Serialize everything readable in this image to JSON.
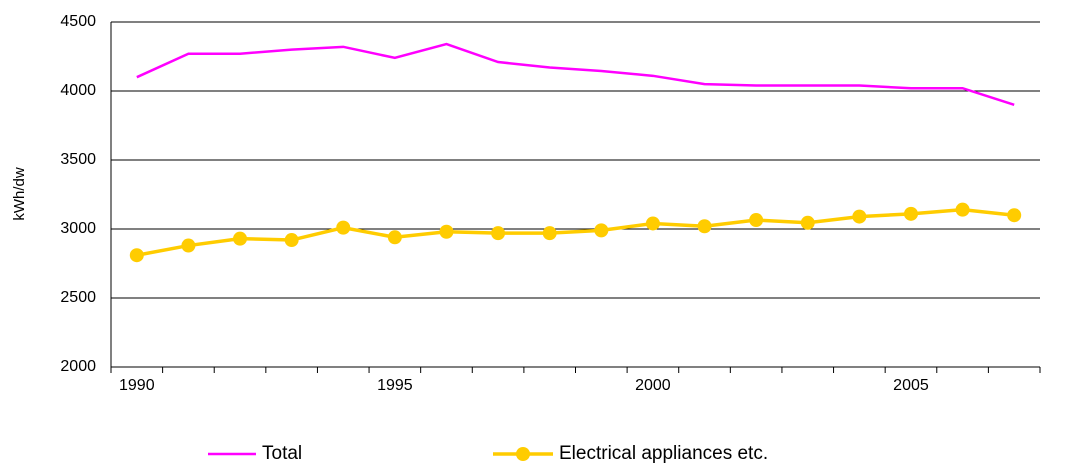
{
  "chart_data": {
    "type": "line",
    "y_label": "kWh/dw",
    "categories": [
      "1990",
      null,
      null,
      null,
      null,
      "1995",
      null,
      null,
      null,
      null,
      "2000",
      null,
      null,
      null,
      null,
      "2005",
      null,
      null
    ],
    "series": [
      {
        "name": "Total",
        "color": "#ff00ff",
        "marker": false,
        "values": [
          4100,
          4270,
          4270,
          4300,
          4320,
          4240,
          4340,
          4210,
          4170,
          4145,
          4110,
          4050,
          4040,
          4040,
          4040,
          4020,
          4020,
          3900
        ]
      },
      {
        "name": "Electrical appliances etc.",
        "color": "#ffcc00",
        "marker": true,
        "values": [
          2810,
          2880,
          2930,
          2920,
          3010,
          2940,
          2980,
          2970,
          2970,
          2990,
          3040,
          3020,
          3065,
          3045,
          3090,
          3110,
          3140,
          3100
        ]
      }
    ],
    "ylim": [
      2000,
      4500
    ],
    "yticks": [
      2000,
      2500,
      3000,
      3500,
      4000,
      4500
    ],
    "grid": true,
    "legend": "bottom"
  }
}
